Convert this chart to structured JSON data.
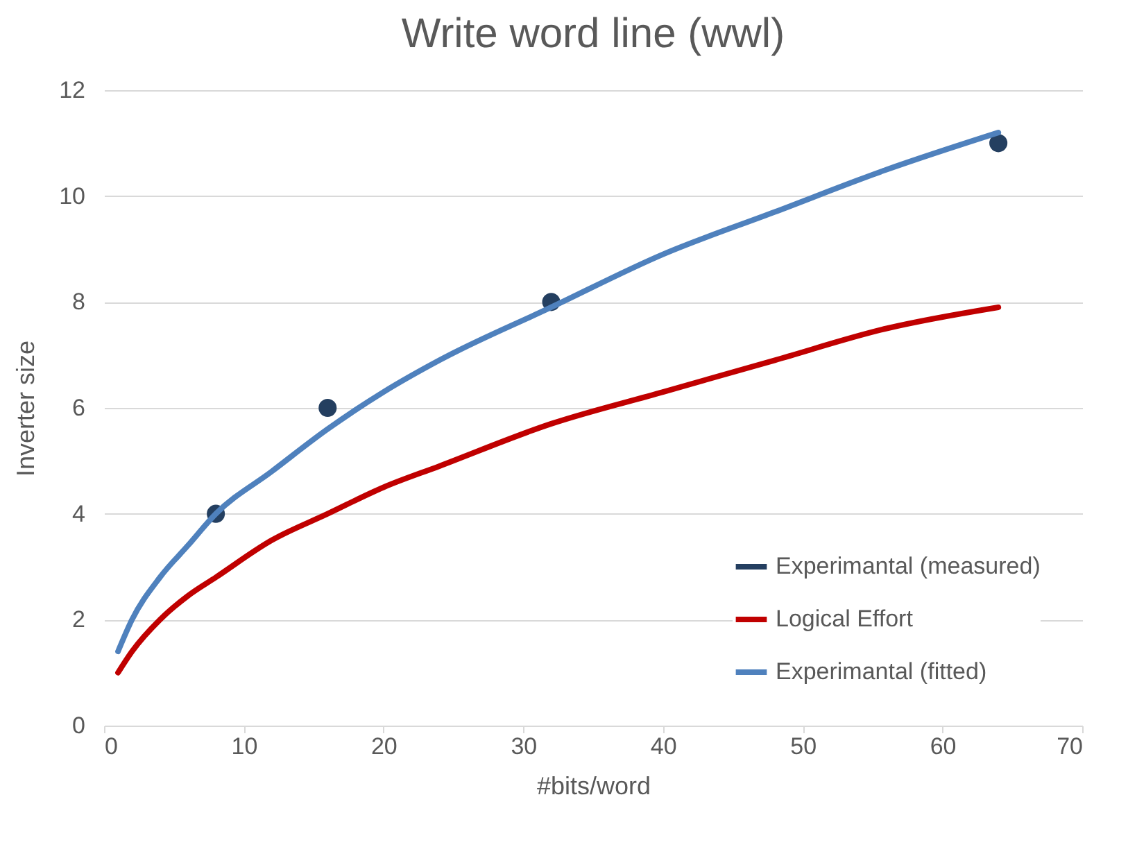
{
  "chart_data": {
    "type": "line",
    "title": "Write word line (wwl)",
    "xlabel": "#bits/word",
    "ylabel": "Inverter size",
    "xlim": [
      0,
      70
    ],
    "xticks": [
      0,
      10,
      20,
      30,
      40,
      50,
      60,
      70
    ],
    "ylim": [
      0,
      12
    ],
    "yticks": [
      0,
      2,
      4,
      6,
      8,
      10,
      12
    ],
    "grid": "y",
    "legend": "bottom right",
    "series": [
      {
        "name": "Experimantal (measured)",
        "type": "scatter",
        "marker": "circle",
        "color": "#243f60",
        "x": [
          8,
          16,
          32,
          64
        ],
        "values": [
          4,
          6,
          8,
          11
        ]
      },
      {
        "name": "Logical Effort",
        "color": "#c00000",
        "x": [
          1,
          2,
          4,
          6,
          8,
          12,
          16,
          20,
          24,
          32,
          40,
          48,
          56,
          64
        ],
        "values": [
          1,
          1.4,
          2,
          2.45,
          2.8,
          3.5,
          4,
          4.5,
          4.9,
          5.7,
          6.3,
          6.9,
          7.5,
          7.9
        ]
      },
      {
        "name": "Experimantal (fitted)",
        "color": "#4f81bd",
        "x": [
          1,
          2,
          4,
          6,
          8,
          12,
          16,
          20,
          24,
          32,
          40,
          48,
          56,
          64
        ],
        "values": [
          1.4,
          2,
          2.8,
          3.4,
          4,
          4.8,
          5.6,
          6.3,
          6.9,
          7.9,
          8.9,
          9.7,
          10.5,
          11.2
        ]
      }
    ]
  }
}
